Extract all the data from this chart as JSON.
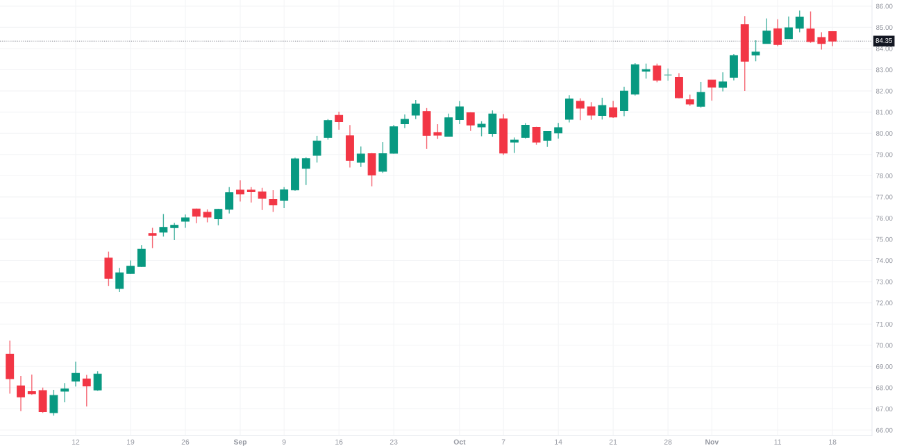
{
  "chart_data": {
    "type": "candlestick",
    "categories": [
      null,
      null,
      null,
      null,
      null,
      null,
      "12",
      null,
      null,
      null,
      null,
      "19",
      null,
      null,
      null,
      null,
      "26",
      null,
      null,
      null,
      null,
      "Sep",
      null,
      null,
      null,
      "9",
      null,
      null,
      null,
      null,
      "16",
      null,
      null,
      null,
      null,
      "23",
      null,
      null,
      null,
      null,
      null,
      "Oct",
      null,
      null,
      null,
      "7",
      null,
      null,
      null,
      null,
      "14",
      null,
      null,
      null,
      null,
      "21",
      null,
      null,
      null,
      null,
      "28",
      null,
      null,
      null,
      "Nov",
      null,
      null,
      null,
      null,
      null,
      "11",
      null,
      null,
      null,
      null,
      "18"
    ],
    "ohlc": [
      [
        69.58,
        70.22,
        67.72,
        68.42
      ],
      [
        68.08,
        68.55,
        66.89,
        67.56
      ],
      [
        67.81,
        68.62,
        67.66,
        67.71
      ],
      [
        67.86,
        68.0,
        66.81,
        66.87
      ],
      [
        66.82,
        67.9,
        66.68,
        67.63
      ],
      [
        67.83,
        68.22,
        67.31,
        67.94
      ],
      [
        68.31,
        69.22,
        68.05,
        68.67
      ],
      [
        68.41,
        68.6,
        67.11,
        68.08
      ],
      [
        67.89,
        68.77,
        67.85,
        68.64
      ],
      [
        74.11,
        74.42,
        72.8,
        73.16
      ],
      [
        72.68,
        73.65,
        72.51,
        73.42
      ],
      [
        73.39,
        74.0,
        73.37,
        73.73
      ],
      [
        73.72,
        74.73,
        73.7,
        74.53
      ],
      [
        75.27,
        75.54,
        74.58,
        75.19
      ],
      [
        75.34,
        76.19,
        75.13,
        75.56
      ],
      [
        75.55,
        75.78,
        74.97,
        75.66
      ],
      [
        75.85,
        76.17,
        75.54,
        76.01
      ],
      [
        76.43,
        76.45,
        75.76,
        76.09
      ],
      [
        76.27,
        76.41,
        75.8,
        76.05
      ],
      [
        75.97,
        76.44,
        75.66,
        76.41
      ],
      [
        76.42,
        77.46,
        76.22,
        77.2
      ],
      [
        77.32,
        77.78,
        76.78,
        77.14
      ],
      [
        77.32,
        77.46,
        76.73,
        77.24
      ],
      [
        77.23,
        77.43,
        76.38,
        76.93
      ],
      [
        76.88,
        77.32,
        76.29,
        76.62
      ],
      [
        76.83,
        77.46,
        76.47,
        77.33
      ],
      [
        77.33,
        78.85,
        77.29,
        78.79
      ],
      [
        78.35,
        78.87,
        77.56,
        78.8
      ],
      [
        78.96,
        79.88,
        78.62,
        79.64
      ],
      [
        79.8,
        80.67,
        79.7,
        80.6
      ],
      [
        80.85,
        81.02,
        80.17,
        80.55
      ],
      [
        79.88,
        80.39,
        78.39,
        78.72
      ],
      [
        78.63,
        79.38,
        78.41,
        79.02
      ],
      [
        79.04,
        79.07,
        77.5,
        78.04
      ],
      [
        78.21,
        79.58,
        78.13,
        79.04
      ],
      [
        79.06,
        80.4,
        79.04,
        80.31
      ],
      [
        80.45,
        80.89,
        80.24,
        80.66
      ],
      [
        80.86,
        81.58,
        80.67,
        81.38
      ],
      [
        81.03,
        81.19,
        79.26,
        79.9
      ],
      [
        80.04,
        80.43,
        79.74,
        79.91
      ],
      [
        79.86,
        80.93,
        79.86,
        80.73
      ],
      [
        80.65,
        81.52,
        80.43,
        81.25
      ],
      [
        80.97,
        81.0,
        80.11,
        80.39
      ],
      [
        80.3,
        80.57,
        79.86,
        80.43
      ],
      [
        79.99,
        81.08,
        79.84,
        80.91
      ],
      [
        80.68,
        80.91,
        78.98,
        79.07
      ],
      [
        79.58,
        79.8,
        79.07,
        79.68
      ],
      [
        79.8,
        80.48,
        79.75,
        80.38
      ],
      [
        80.28,
        80.31,
        79.46,
        79.58
      ],
      [
        79.67,
        80.1,
        79.36,
        80.09
      ],
      [
        80.02,
        80.49,
        79.75,
        80.27
      ],
      [
        80.66,
        81.8,
        80.51,
        81.62
      ],
      [
        81.51,
        81.65,
        80.62,
        81.19
      ],
      [
        81.25,
        81.47,
        80.64,
        80.86
      ],
      [
        80.84,
        81.68,
        80.65,
        81.31
      ],
      [
        81.21,
        81.53,
        80.73,
        80.77
      ],
      [
        81.07,
        82.2,
        80.81,
        81.99
      ],
      [
        81.85,
        83.31,
        81.78,
        83.24
      ],
      [
        82.93,
        83.29,
        82.58,
        83.01
      ],
      [
        83.18,
        83.29,
        82.41,
        82.5
      ],
      [
        82.75,
        83.06,
        82.48,
        82.75
      ],
      [
        82.64,
        82.84,
        81.65,
        81.68
      ],
      [
        81.58,
        81.82,
        81.3,
        81.38
      ],
      [
        81.28,
        82.43,
        81.21,
        81.93
      ],
      [
        82.52,
        82.52,
        81.54,
        82.18
      ],
      [
        82.17,
        82.88,
        81.98,
        82.43
      ],
      [
        82.64,
        83.74,
        82.49,
        83.67
      ],
      [
        85.13,
        85.53,
        82.0,
        83.4
      ],
      [
        83.7,
        84.39,
        83.4,
        83.83
      ],
      [
        84.24,
        85.42,
        84.24,
        84.82
      ],
      [
        84.93,
        85.38,
        84.11,
        84.19
      ],
      [
        84.47,
        85.51,
        84.47,
        84.98
      ],
      [
        84.96,
        85.79,
        84.77,
        85.49
      ],
      [
        84.92,
        85.75,
        84.27,
        84.33
      ],
      [
        84.52,
        84.77,
        83.95,
        84.24
      ],
      [
        84.8,
        84.82,
        84.11,
        84.35
      ]
    ],
    "colors": [
      "#f23645",
      "#f23645",
      "#f23645",
      "#f23645",
      "#089981",
      "#089981",
      "#089981",
      "#f23645",
      "#089981",
      "#f23645",
      "#089981",
      "#089981",
      "#089981",
      "#f23645",
      "#089981",
      "#089981",
      "#089981",
      "#f23645",
      "#f23645",
      "#089981",
      "#089981",
      "#f23645",
      "#f23645",
      "#f23645",
      "#f23645",
      "#089981",
      "#089981",
      "#089981",
      "#089981",
      "#089981",
      "#f23645",
      "#f23645",
      "#089981",
      "#f23645",
      "#089981",
      "#089981",
      "#089981",
      "#089981",
      "#f23645",
      "#f23645",
      "#089981",
      "#089981",
      "#f23645",
      "#089981",
      "#089981",
      "#f23645",
      "#089981",
      "#089981",
      "#f23645",
      "#089981",
      "#089981",
      "#089981",
      "#f23645",
      "#f23645",
      "#089981",
      "#f23645",
      "#089981",
      "#089981",
      "#089981",
      "#f23645",
      "#5fb8a6",
      "#f23645",
      "#f23645",
      "#089981",
      "#f23645",
      "#089981",
      "#089981",
      "#f23645",
      "#089981",
      "#089981",
      "#f23645",
      "#089981",
      "#089981",
      "#f23645",
      "#f23645",
      "#f23645"
    ],
    "ylim": [
      65.75,
      86.29
    ],
    "yticks": [
      {
        "value": 66,
        "label": "66.00"
      },
      {
        "value": 67,
        "label": "67.00"
      },
      {
        "value": 68,
        "label": "68.00"
      },
      {
        "value": 69,
        "label": "69.00"
      },
      {
        "value": 70,
        "label": "70.00"
      },
      {
        "value": 71,
        "label": "71.00"
      },
      {
        "value": 72,
        "label": "72.00"
      },
      {
        "value": 73,
        "label": "73.00"
      },
      {
        "value": 74,
        "label": "74.00"
      },
      {
        "value": 75,
        "label": "75.00"
      },
      {
        "value": 76,
        "label": "76.00"
      },
      {
        "value": 77,
        "label": "77.00"
      },
      {
        "value": 78,
        "label": "78.00"
      },
      {
        "value": 79,
        "label": "79.00"
      },
      {
        "value": 80,
        "label": "80.00"
      },
      {
        "value": 81,
        "label": "81.00"
      },
      {
        "value": 82,
        "label": "82.00"
      },
      {
        "value": 83,
        "label": "83.00"
      },
      {
        "value": 84,
        "label": "84.00"
      },
      {
        "value": 85,
        "label": "85.00"
      },
      {
        "value": 86,
        "label": "86.00"
      }
    ],
    "ref_lines": [
      {
        "axis": "y",
        "value": 84.35,
        "label": "84.35",
        "color": "#787b86",
        "line_style": "dotted"
      }
    ],
    "grid": true
  }
}
